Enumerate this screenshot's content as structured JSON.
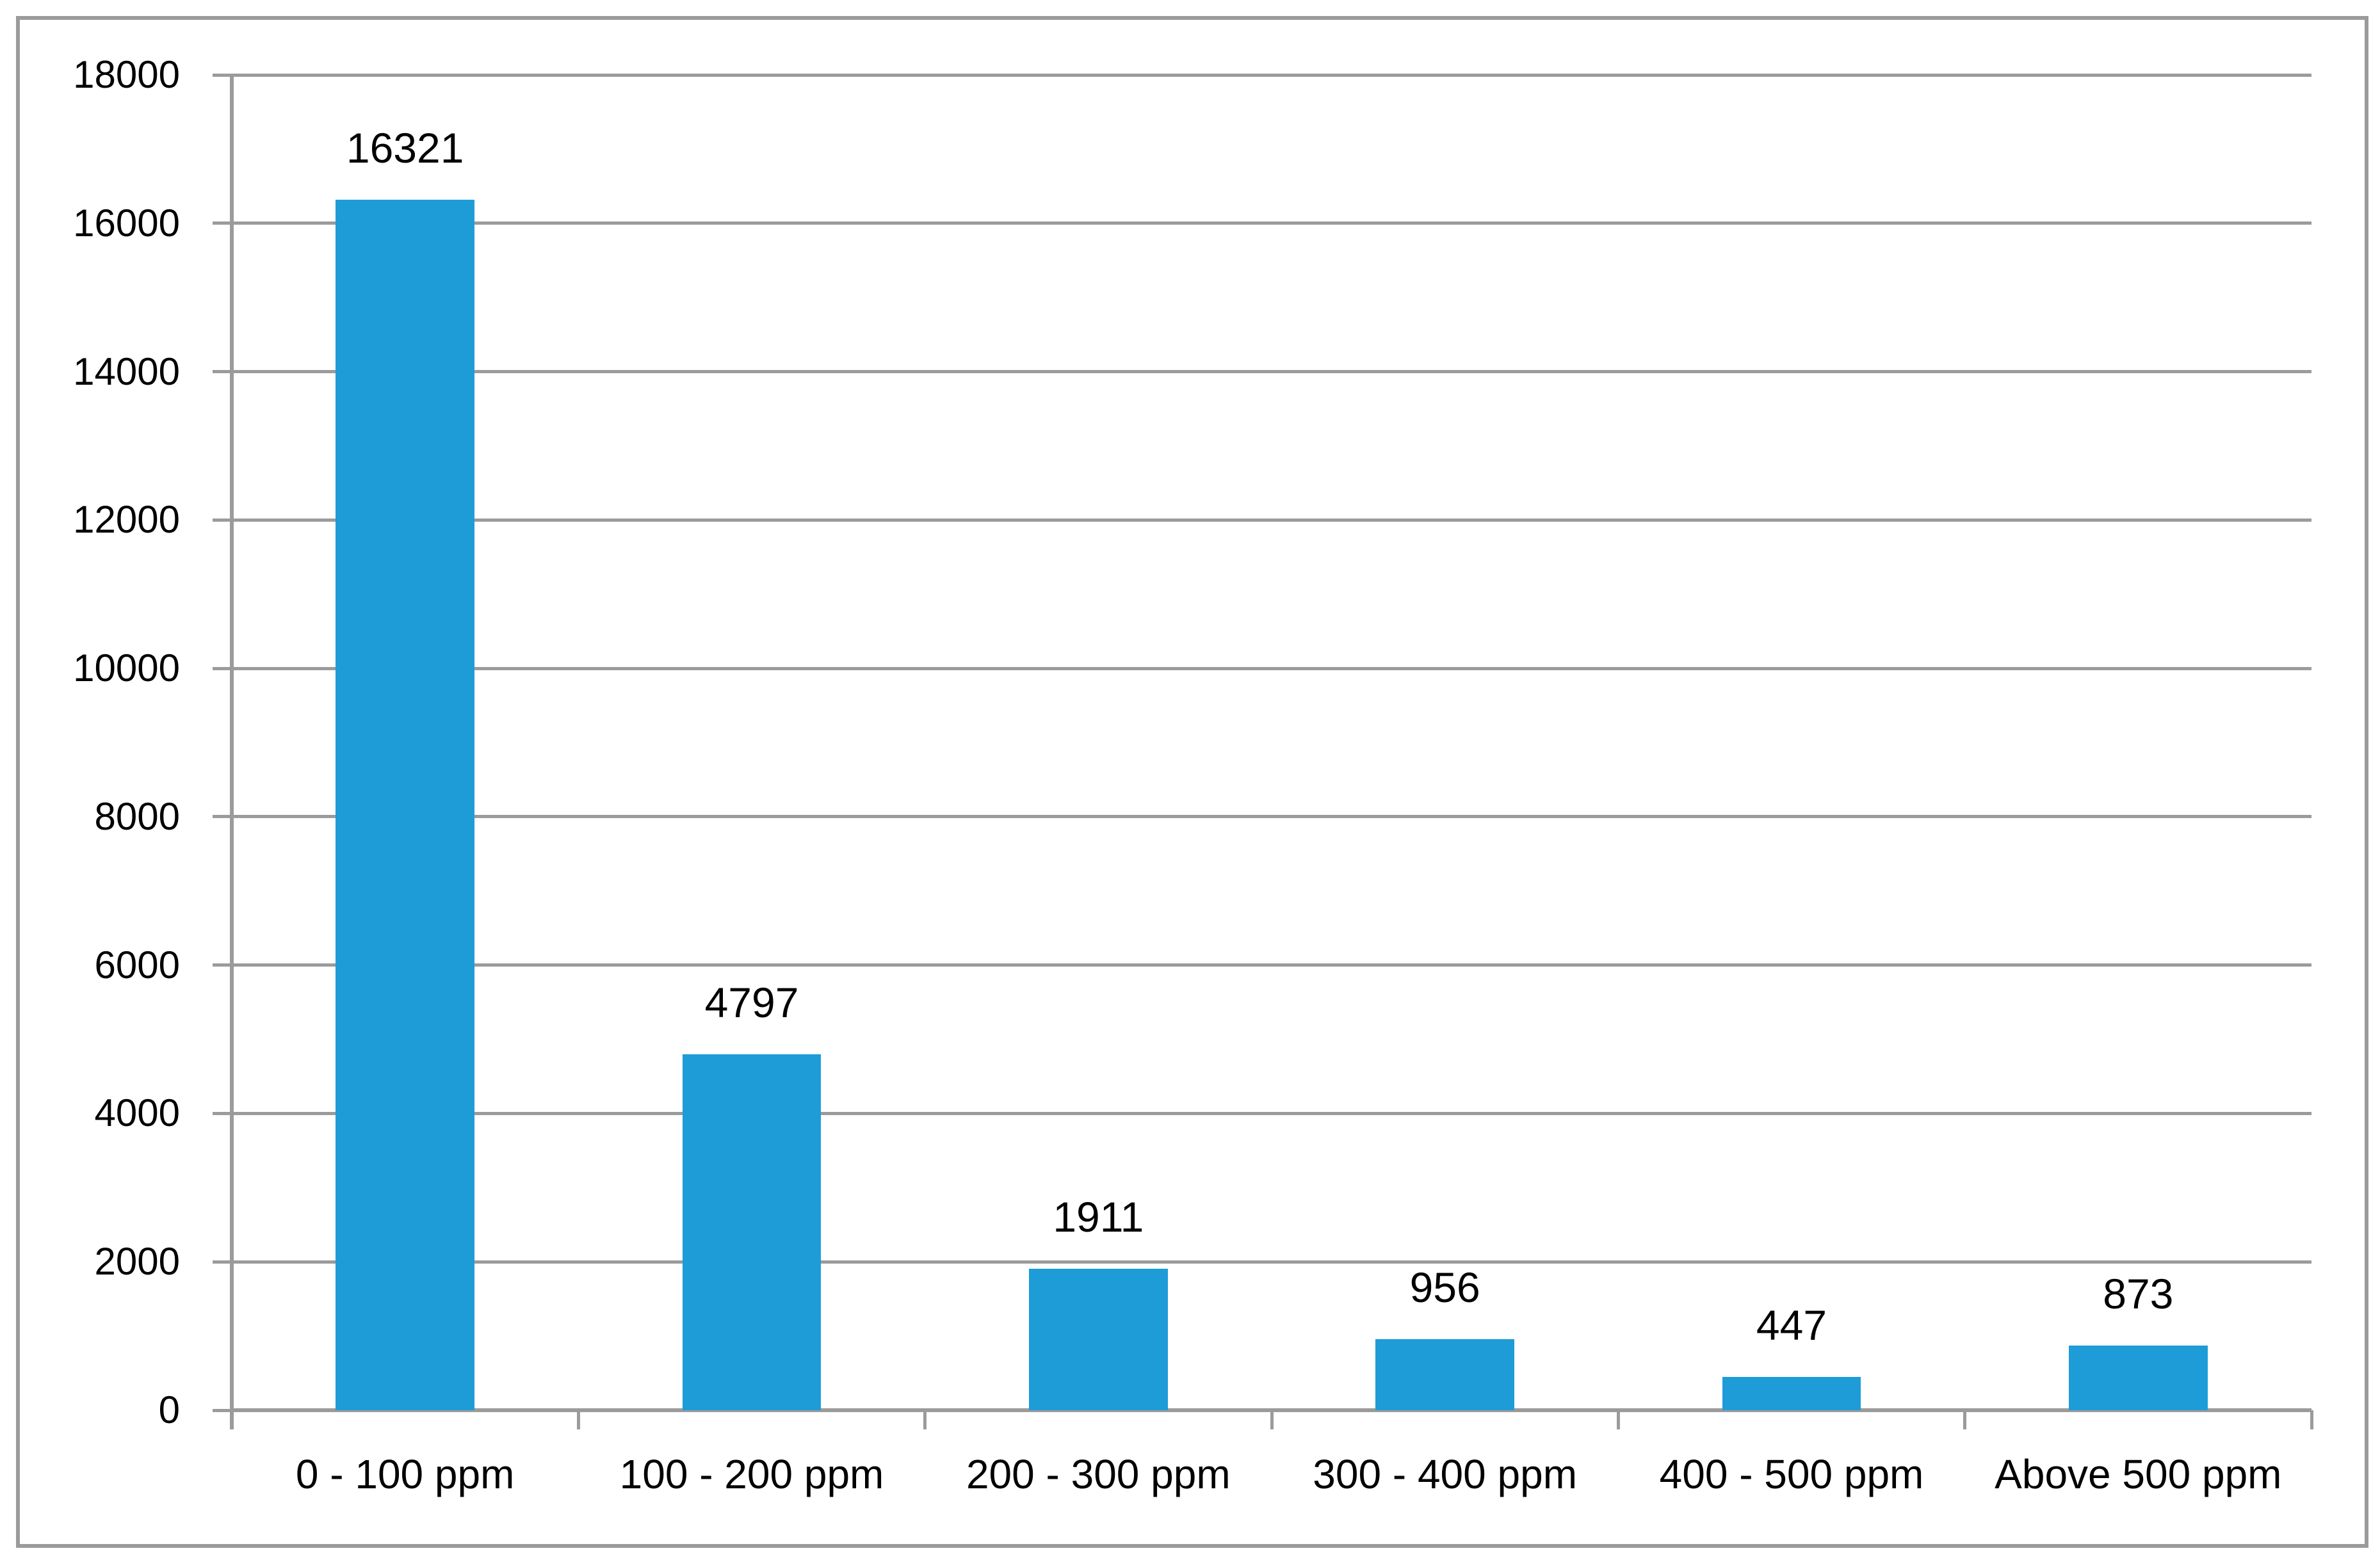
{
  "chart_data": {
    "type": "bar",
    "title": "",
    "xlabel": "",
    "ylabel": "",
    "categories": [
      "0 - 100 ppm",
      "100 - 200 ppm",
      "200 - 300 ppm",
      "300 - 400 ppm",
      "400 - 500 ppm",
      "Above 500 ppm"
    ],
    "values": [
      16321,
      4797,
      1911,
      956,
      447,
      873
    ],
    "data_labels": [
      "16321",
      "4797",
      "1911",
      "956",
      "447",
      "873"
    ],
    "ylim": [
      0,
      18000
    ],
    "ytick_interval": 2000,
    "ytick_labels": [
      "0",
      "2000",
      "4000",
      "6000",
      "8000",
      "10000",
      "12000",
      "14000",
      "16000",
      "18000"
    ],
    "grid": "horizontal",
    "legend": "none",
    "colors": {
      "bar_fill": "#1E9CD8",
      "gridline": "#9B9B9B",
      "axis_line": "#9B9B9B",
      "frame_border": "#9B9B9B",
      "label_text": "#000000",
      "background": "#FFFFFF"
    }
  }
}
